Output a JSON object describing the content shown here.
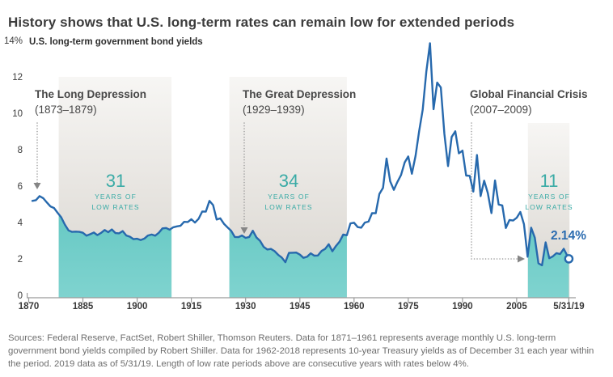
{
  "page": {
    "title": "History shows that U.S. long-term rates can remain low for extended periods",
    "footer_sources": "Sources: Federal Reserve, FactSet, Robert Shiller, Thomson Reuters. Data for 1871–1961 represents average monthly U.S. long-term government bond yields compiled by Robert Shiller. Data for 1962-2018 represents 10-year Treasury yields as of December 31 each year within the period. 2019 data as of 5/31/19. Length of low rate periods above are consecutive years with rates below 4%."
  },
  "chart_data": {
    "type": "line",
    "title": "U.S. long-term government bond yields",
    "unit": "%",
    "ylim": [
      0,
      14
    ],
    "grid": "off",
    "legend": "none",
    "y_ticks": [
      {
        "value": 0,
        "label": "0"
      },
      {
        "value": 2,
        "label": "2"
      },
      {
        "value": 4,
        "label": "4"
      },
      {
        "value": 6,
        "label": "6"
      },
      {
        "value": 8,
        "label": "8"
      },
      {
        "value": 10,
        "label": "10"
      },
      {
        "value": 12,
        "label": "12"
      },
      {
        "value": 14,
        "label": "14%"
      }
    ],
    "x_ticks": [
      {
        "value": 1870,
        "label": "1870"
      },
      {
        "value": 1885,
        "label": "1885"
      },
      {
        "value": 1900,
        "label": "1900"
      },
      {
        "value": 1915,
        "label": "1915"
      },
      {
        "value": 1930,
        "label": "1930"
      },
      {
        "value": 1945,
        "label": "1945"
      },
      {
        "value": 1960,
        "label": "1960"
      },
      {
        "value": 1975,
        "label": "1975"
      },
      {
        "value": 1990,
        "label": "1990"
      },
      {
        "value": 2005,
        "label": "2005"
      },
      {
        "value": 2019.42,
        "label": "5/31/19"
      }
    ],
    "series": [
      {
        "name": "U.S. long-term government bond yields",
        "points": [
          [
            1871,
            5.32
          ],
          [
            1872,
            5.36
          ],
          [
            1873,
            5.58
          ],
          [
            1874,
            5.47
          ],
          [
            1875,
            5.24
          ],
          [
            1876,
            5.02
          ],
          [
            1877,
            4.93
          ],
          [
            1878,
            4.66
          ],
          [
            1879,
            4.42
          ],
          [
            1880,
            4.02
          ],
          [
            1881,
            3.7
          ],
          [
            1882,
            3.62
          ],
          [
            1883,
            3.63
          ],
          [
            1884,
            3.62
          ],
          [
            1885,
            3.57
          ],
          [
            1886,
            3.41
          ],
          [
            1887,
            3.49
          ],
          [
            1888,
            3.58
          ],
          [
            1889,
            3.44
          ],
          [
            1890,
            3.56
          ],
          [
            1891,
            3.72
          ],
          [
            1892,
            3.6
          ],
          [
            1893,
            3.75
          ],
          [
            1894,
            3.55
          ],
          [
            1895,
            3.54
          ],
          [
            1896,
            3.66
          ],
          [
            1897,
            3.42
          ],
          [
            1898,
            3.35
          ],
          [
            1899,
            3.22
          ],
          [
            1900,
            3.24
          ],
          [
            1901,
            3.17
          ],
          [
            1902,
            3.25
          ],
          [
            1903,
            3.42
          ],
          [
            1904,
            3.47
          ],
          [
            1905,
            3.41
          ],
          [
            1906,
            3.57
          ],
          [
            1907,
            3.81
          ],
          [
            1908,
            3.83
          ],
          [
            1909,
            3.74
          ],
          [
            1910,
            3.87
          ],
          [
            1911,
            3.92
          ],
          [
            1912,
            3.95
          ],
          [
            1913,
            4.17
          ],
          [
            1914,
            4.16
          ],
          [
            1915,
            4.31
          ],
          [
            1916,
            4.13
          ],
          [
            1917,
            4.34
          ],
          [
            1918,
            4.74
          ],
          [
            1919,
            4.73
          ],
          [
            1920,
            5.32
          ],
          [
            1921,
            5.09
          ],
          [
            1922,
            4.3
          ],
          [
            1923,
            4.36
          ],
          [
            1924,
            4.06
          ],
          [
            1925,
            3.86
          ],
          [
            1926,
            3.68
          ],
          [
            1927,
            3.34
          ],
          [
            1928,
            3.33
          ],
          [
            1929,
            3.42
          ],
          [
            1930,
            3.29
          ],
          [
            1931,
            3.34
          ],
          [
            1932,
            3.68
          ],
          [
            1933,
            3.31
          ],
          [
            1934,
            3.12
          ],
          [
            1935,
            2.79
          ],
          [
            1936,
            2.65
          ],
          [
            1937,
            2.68
          ],
          [
            1938,
            2.56
          ],
          [
            1939,
            2.36
          ],
          [
            1940,
            2.21
          ],
          [
            1941,
            1.95
          ],
          [
            1942,
            2.46
          ],
          [
            1943,
            2.47
          ],
          [
            1944,
            2.48
          ],
          [
            1945,
            2.37
          ],
          [
            1946,
            2.19
          ],
          [
            1947,
            2.25
          ],
          [
            1948,
            2.44
          ],
          [
            1949,
            2.31
          ],
          [
            1950,
            2.32
          ],
          [
            1951,
            2.57
          ],
          [
            1952,
            2.68
          ],
          [
            1953,
            2.94
          ],
          [
            1954,
            2.55
          ],
          [
            1955,
            2.84
          ],
          [
            1956,
            3.08
          ],
          [
            1957,
            3.47
          ],
          [
            1958,
            3.43
          ],
          [
            1959,
            4.08
          ],
          [
            1960,
            4.12
          ],
          [
            1961,
            3.88
          ],
          [
            1962,
            3.85
          ],
          [
            1963,
            4.13
          ],
          [
            1964,
            4.18
          ],
          [
            1965,
            4.65
          ],
          [
            1966,
            4.64
          ],
          [
            1967,
            5.7
          ],
          [
            1968,
            6.03
          ],
          [
            1969,
            7.65
          ],
          [
            1970,
            6.39
          ],
          [
            1971,
            5.93
          ],
          [
            1972,
            6.36
          ],
          [
            1973,
            6.74
          ],
          [
            1974,
            7.43
          ],
          [
            1975,
            7.76
          ],
          [
            1976,
            6.81
          ],
          [
            1977,
            7.78
          ],
          [
            1978,
            9.15
          ],
          [
            1979,
            10.33
          ],
          [
            1980,
            12.43
          ],
          [
            1981,
            13.98
          ],
          [
            1982,
            10.36
          ],
          [
            1983,
            11.82
          ],
          [
            1984,
            11.55
          ],
          [
            1985,
            9.0
          ],
          [
            1986,
            7.23
          ],
          [
            1987,
            8.83
          ],
          [
            1988,
            9.14
          ],
          [
            1989,
            7.93
          ],
          [
            1990,
            8.08
          ],
          [
            1991,
            6.71
          ],
          [
            1992,
            6.7
          ],
          [
            1993,
            5.83
          ],
          [
            1994,
            7.84
          ],
          [
            1995,
            5.58
          ],
          [
            1996,
            6.43
          ],
          [
            1997,
            5.75
          ],
          [
            1998,
            4.65
          ],
          [
            1999,
            6.44
          ],
          [
            2000,
            5.12
          ],
          [
            2001,
            5.07
          ],
          [
            2002,
            3.83
          ],
          [
            2003,
            4.27
          ],
          [
            2004,
            4.24
          ],
          [
            2005,
            4.39
          ],
          [
            2006,
            4.71
          ],
          [
            2007,
            4.04
          ],
          [
            2008,
            2.25
          ],
          [
            2009,
            3.85
          ],
          [
            2010,
            3.3
          ],
          [
            2011,
            1.89
          ],
          [
            2012,
            1.78
          ],
          [
            2013,
            3.04
          ],
          [
            2014,
            2.17
          ],
          [
            2015,
            2.27
          ],
          [
            2016,
            2.45
          ],
          [
            2017,
            2.4
          ],
          [
            2018,
            2.69
          ],
          [
            2019.42,
            2.14
          ]
        ]
      }
    ],
    "end_point_label": "2.14%",
    "low_rate_bands": [
      {
        "event": "The Long Depression",
        "event_years": "(1873–1879)",
        "arrow_year": 1873,
        "start_year": 1878.3,
        "end_year": 1909.5,
        "years_count": "31",
        "caption_line1": "YEARS OF",
        "caption_line2": "LOW RATES"
      },
      {
        "event": "The Great Depression",
        "event_years": "(1929–1939)",
        "arrow_year": 1929,
        "start_year": 1925.5,
        "end_year": 1958.0,
        "years_count": "34",
        "caption_line1": "YEARS OF",
        "caption_line2": "LOW RATES"
      },
      {
        "event": "Global Financial Crisis",
        "event_years": "(2007–2009)",
        "start_year": 2008.1,
        "end_year": 2019.6,
        "years_count": "11",
        "caption_line1": "YEARS OF",
        "caption_line2": "LOW RATES"
      }
    ],
    "colors": {
      "line": "#2769ad",
      "teal_fill_top": "#38b5af",
      "teal_fill_bottom": "#7fd3cf",
      "band_top": "#f7f6f4",
      "band_bottom": "#d8d4ce",
      "accent_text": "#2b6cb0",
      "badge_text": "#3aaba6",
      "connector": "#9a9a9a",
      "axis": "#9b9b9b"
    }
  }
}
